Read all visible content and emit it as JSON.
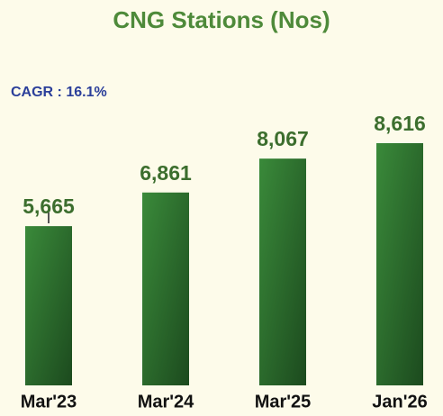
{
  "chart_data": {
    "type": "bar",
    "title": "CNG Stations (Nos)",
    "annotation": "CAGR : 16.1%",
    "categories": [
      "Mar'23",
      "Mar'24",
      "Mar'25",
      "Jan'26"
    ],
    "values": [
      5665,
      6861,
      8067,
      8616
    ],
    "value_labels": [
      "5,665",
      "6,861",
      "8,067",
      "8,616"
    ],
    "color": "#2f6e2c"
  }
}
